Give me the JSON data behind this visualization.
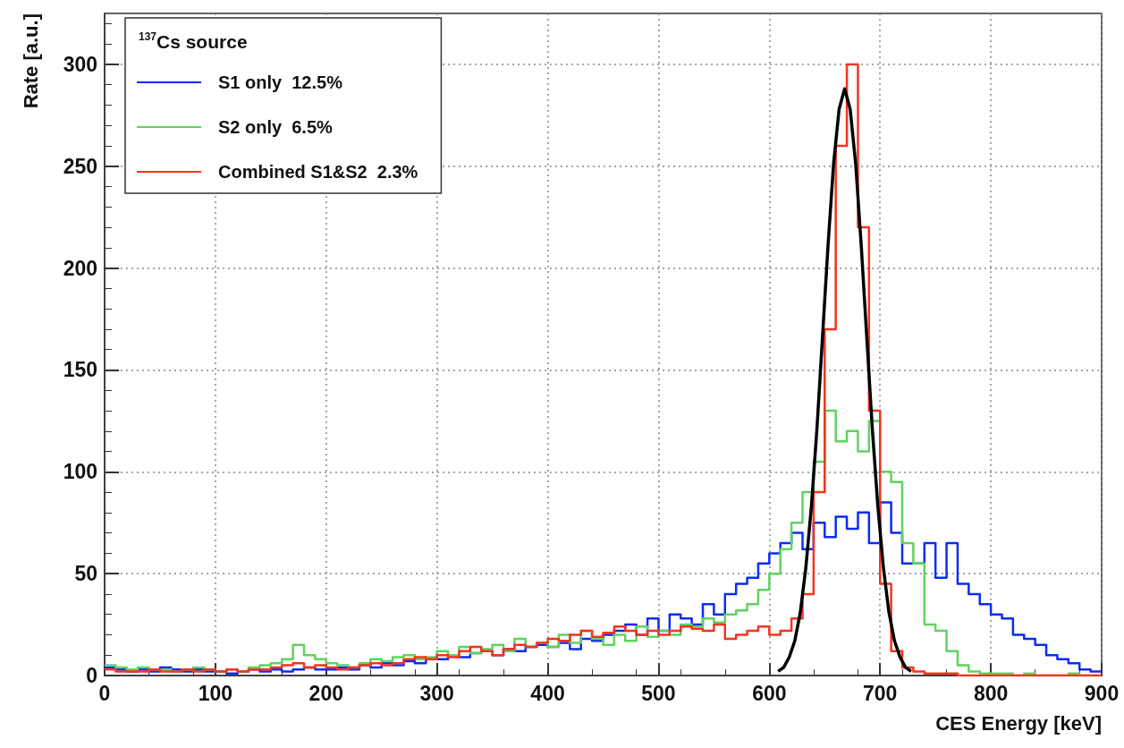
{
  "chart_data": {
    "type": "histogram",
    "xlabel": "CES Energy [keV]",
    "ylabel": "Rate [a.u.]",
    "legend_title": "$^{137}$Cs source",
    "bins": [
      0,
      10,
      20,
      30,
      40,
      50,
      60,
      70,
      80,
      90,
      100,
      110,
      120,
      130,
      140,
      150,
      160,
      170,
      180,
      190,
      200,
      210,
      220,
      230,
      240,
      250,
      260,
      270,
      280,
      290,
      300,
      310,
      320,
      330,
      340,
      350,
      360,
      370,
      380,
      390,
      400,
      410,
      420,
      430,
      440,
      450,
      460,
      470,
      480,
      490,
      500,
      510,
      520,
      530,
      540,
      550,
      560,
      570,
      580,
      590,
      600,
      610,
      620,
      630,
      640,
      650,
      660,
      670,
      680,
      690,
      700,
      710,
      720,
      730,
      740,
      750,
      760,
      770,
      780,
      790,
      800,
      810,
      820,
      830,
      840,
      850,
      860,
      870,
      880,
      890,
      900
    ],
    "series": [
      {
        "name": "S1 only  12.5%",
        "color": "#0a2cf5",
        "values": [
          4,
          3,
          2,
          3,
          2,
          4,
          3,
          2,
          3,
          2,
          2,
          1,
          2,
          3,
          2,
          3,
          2,
          3,
          4,
          3,
          3,
          4,
          3,
          5,
          4,
          6,
          5,
          7,
          6,
          8,
          8,
          10,
          9,
          11,
          12,
          10,
          13,
          12,
          14,
          15,
          14,
          16,
          13,
          18,
          17,
          20,
          22,
          25,
          20,
          28,
          22,
          30,
          28,
          25,
          35,
          30,
          40,
          45,
          48,
          55,
          60,
          65,
          70,
          62,
          75,
          68,
          78,
          72,
          80,
          65,
          85,
          70,
          55,
          55,
          65,
          48,
          65,
          45,
          40,
          35,
          30,
          28,
          20,
          18,
          15,
          10,
          8,
          6,
          3,
          2
        ]
      },
      {
        "name": "S2 only  6.5%",
        "color": "#5fd35f",
        "values": [
          5,
          4,
          3,
          4,
          3,
          3,
          2,
          3,
          4,
          3,
          2,
          3,
          2,
          4,
          5,
          6,
          8,
          15,
          10,
          8,
          6,
          5,
          4,
          6,
          8,
          7,
          9,
          10,
          8,
          9,
          12,
          10,
          14,
          11,
          13,
          15,
          12,
          18,
          14,
          16,
          14,
          20,
          16,
          22,
          18,
          15,
          20,
          17,
          24,
          19,
          22,
          20,
          25,
          24,
          28,
          26,
          30,
          32,
          35,
          42,
          50,
          62,
          75,
          90,
          105,
          130,
          115,
          120,
          110,
          125,
          100,
          95,
          65,
          55,
          25,
          22,
          12,
          5,
          2,
          1,
          1,
          1,
          0,
          1,
          0,
          0,
          0,
          1,
          0,
          0
        ]
      },
      {
        "name": "Combined S1&S2  2.3%",
        "color": "#f5331e",
        "values": [
          3,
          2,
          2,
          2,
          3,
          2,
          2,
          3,
          2,
          3,
          2,
          3,
          2,
          3,
          3,
          4,
          5,
          6,
          4,
          5,
          4,
          3,
          4,
          5,
          6,
          5,
          6,
          8,
          9,
          8,
          10,
          9,
          12,
          14,
          12,
          10,
          13,
          15,
          14,
          16,
          18,
          17,
          20,
          22,
          19,
          21,
          24,
          22,
          20,
          22,
          20,
          22,
          24,
          23,
          22,
          25,
          18,
          20,
          22,
          24,
          20,
          22,
          28,
          40,
          90,
          170,
          260,
          300,
          220,
          130,
          45,
          12,
          4,
          2,
          1,
          1,
          1,
          0,
          0,
          0,
          0,
          0,
          0,
          0,
          0,
          0,
          0,
          0,
          0,
          0
        ]
      },
      {
        "type": "line",
        "color": "#000000",
        "x": [
          608,
          613,
          618,
          623,
          628,
          633,
          638,
          643,
          648,
          653,
          658,
          663,
          668,
          673,
          678,
          683,
          688,
          693,
          698,
          703,
          708,
          713,
          718,
          723,
          728
        ],
        "values": [
          2,
          4,
          9,
          17,
          31,
          53,
          83,
          121,
          166,
          211,
          251,
          278,
          288,
          278,
          251,
          211,
          166,
          121,
          83,
          53,
          31,
          17,
          9,
          4,
          2
        ]
      }
    ],
    "xlim": [
      0,
      900
    ],
    "xticks": [
      0,
      100,
      200,
      300,
      400,
      500,
      600,
      700,
      800,
      900
    ],
    "ylim": [
      0,
      325
    ],
    "yticks": [
      0,
      50,
      100,
      150,
      200,
      250,
      300
    ],
    "grid": true,
    "legend": "top left"
  }
}
